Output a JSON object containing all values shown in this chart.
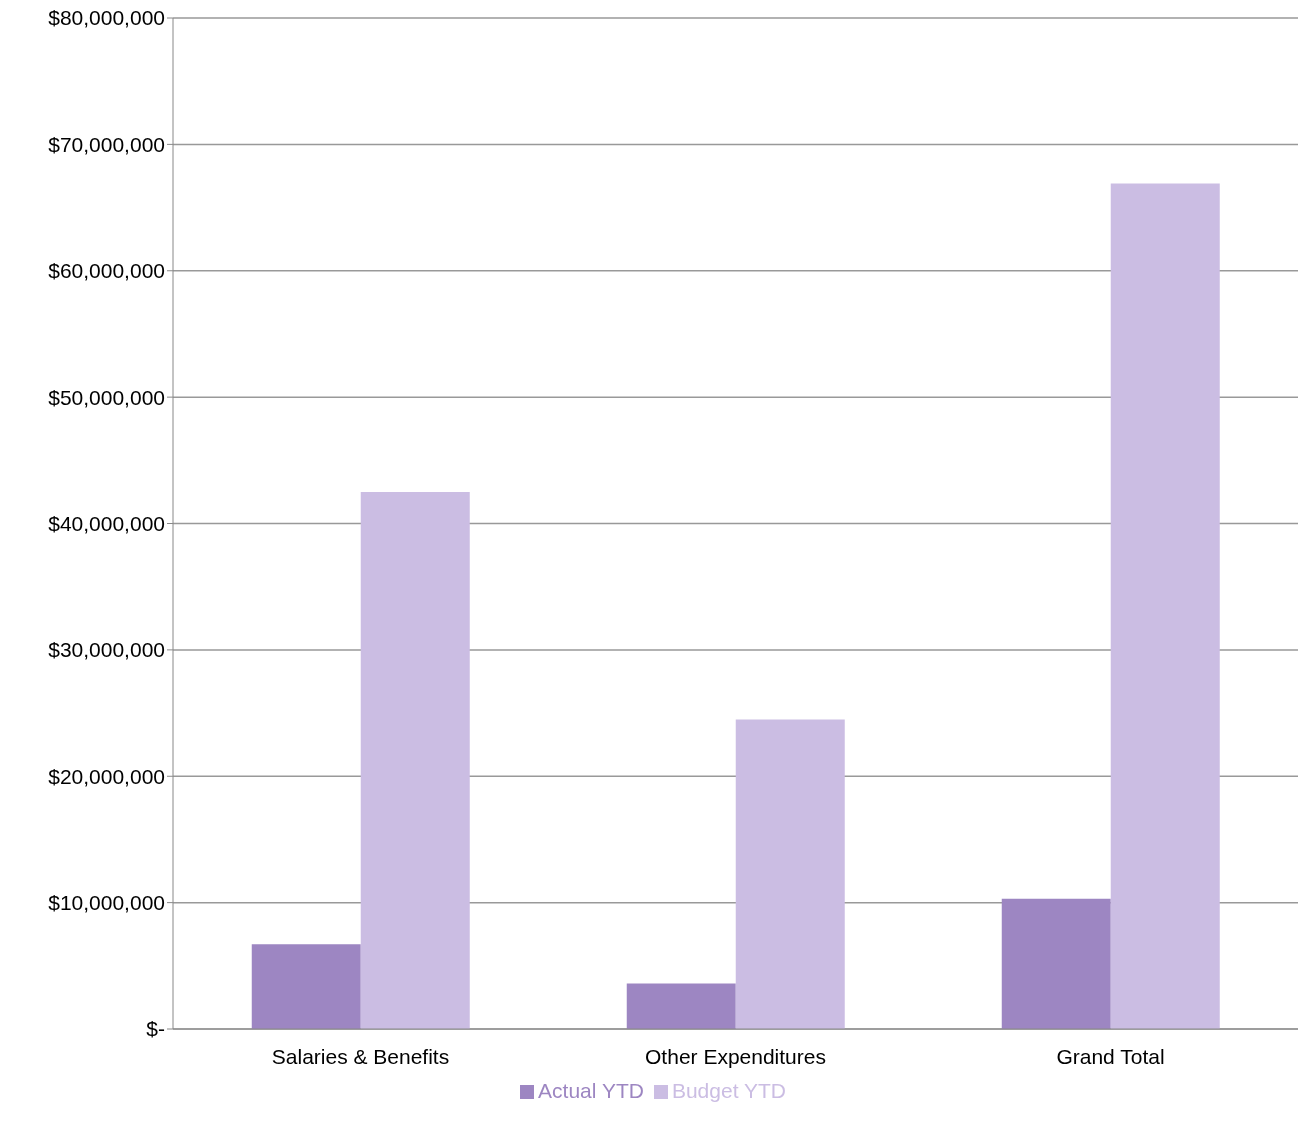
{
  "chart_data": {
    "type": "bar",
    "categories": [
      "Salaries & Benefits",
      "Other Expenditures",
      "Grand Total"
    ],
    "series": [
      {
        "name": "Actual YTD",
        "color": "#9d86c2",
        "values": [
          6700000,
          3600000,
          10300000
        ]
      },
      {
        "name": "Budget YTD",
        "color": "#cbbde3",
        "values": [
          42500000,
          24500000,
          66900000
        ]
      }
    ],
    "ylim": [
      0,
      80000000
    ],
    "yticks": [
      {
        "value": 0,
        "label": "$-"
      },
      {
        "value": 10000000,
        "label": "$10,000,000"
      },
      {
        "value": 20000000,
        "label": "$20,000,000"
      },
      {
        "value": 30000000,
        "label": "$30,000,000"
      },
      {
        "value": 40000000,
        "label": "$40,000,000"
      },
      {
        "value": 50000000,
        "label": "$50,000,000"
      },
      {
        "value": 60000000,
        "label": "$60,000,000"
      },
      {
        "value": 70000000,
        "label": "$70,000,000"
      },
      {
        "value": 80000000,
        "label": "$80,000,000"
      }
    ],
    "grid": "y",
    "legend": "bottom"
  }
}
